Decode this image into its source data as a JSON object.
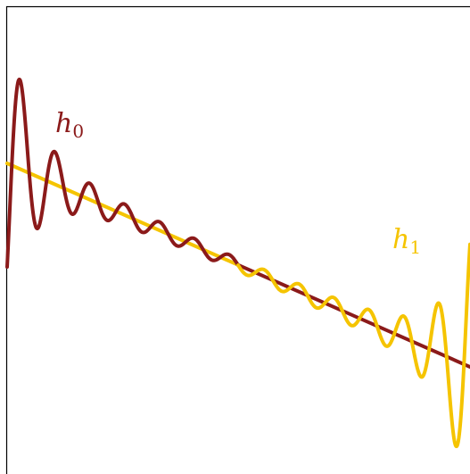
{
  "diagram": {
    "curve_h0": {
      "label_main": "h",
      "label_sub": "0",
      "color": "#8b1a1a"
    },
    "curve_h1": {
      "label_main": "h",
      "label_sub": "1",
      "color": "#f5c400"
    },
    "frame_color": "#000000"
  }
}
